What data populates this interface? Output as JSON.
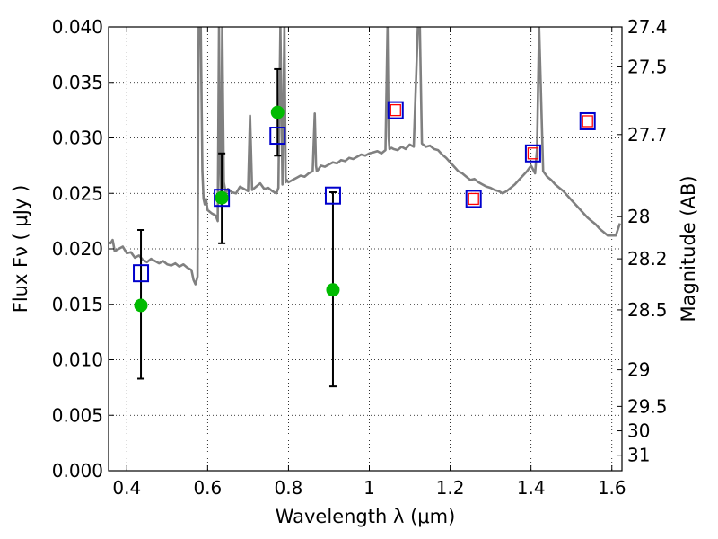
{
  "chart_data": {
    "type": "line",
    "title": "",
    "xlabel": "Wavelength  λ (μm)",
    "ylabel": "Flux  Fν  ( μJy )",
    "y2label": "Magnitude (AB)",
    "xlim": [
      0.355,
      1.625
    ],
    "ylim": [
      0.0,
      0.04
    ],
    "grid": true,
    "x_ticks": [
      0.4,
      0.6,
      0.8,
      1.0,
      1.2,
      1.4,
      1.6
    ],
    "x_tick_labels": [
      "0.4",
      "0.6",
      "0.8",
      "1",
      "1.2",
      "1.4",
      "1.6"
    ],
    "y_ticks": [
      0.0,
      0.005,
      0.01,
      0.015,
      0.02,
      0.025,
      0.03,
      0.035,
      0.04
    ],
    "y_tick_labels": [
      "0.000",
      "0.005",
      "0.010",
      "0.015",
      "0.020",
      "0.025",
      "0.030",
      "0.035",
      "0.040"
    ],
    "mag_ticks": [
      27.4,
      27.5,
      27.7,
      28,
      28.2,
      28.5,
      29,
      29.5,
      30,
      31
    ],
    "mag_tick_labels": [
      "27.4",
      "27.5",
      "27.7",
      "28",
      "28.2",
      "28.5",
      "29",
      "29.5",
      "30",
      "31"
    ],
    "mag_tick_flux": [
      0.04,
      0.0364,
      0.0303,
      0.0229,
      0.0191,
      0.0145,
      0.0091,
      0.0058,
      0.0036,
      0.0014
    ],
    "series": [
      {
        "type": "line",
        "color": "#808080",
        "x": [
          0.355,
          0.36,
          0.365,
          0.37,
          0.38,
          0.39,
          0.4,
          0.41,
          0.42,
          0.43,
          0.44,
          0.45,
          0.46,
          0.47,
          0.48,
          0.49,
          0.5,
          0.51,
          0.52,
          0.53,
          0.54,
          0.55,
          0.56,
          0.565,
          0.57,
          0.575,
          0.578,
          0.58,
          0.583,
          0.587,
          0.59,
          0.593,
          0.596,
          0.6,
          0.61,
          0.62,
          0.625,
          0.628,
          0.63,
          0.633,
          0.636,
          0.64,
          0.645,
          0.65,
          0.66,
          0.67,
          0.68,
          0.69,
          0.7,
          0.705,
          0.71,
          0.72,
          0.73,
          0.74,
          0.75,
          0.76,
          0.77,
          0.775,
          0.78,
          0.785,
          0.79,
          0.793,
          0.796,
          0.8,
          0.81,
          0.82,
          0.83,
          0.84,
          0.85,
          0.86,
          0.865,
          0.868,
          0.87,
          0.875,
          0.88,
          0.89,
          0.9,
          0.91,
          0.92,
          0.93,
          0.94,
          0.95,
          0.96,
          0.97,
          0.98,
          0.99,
          1.0,
          1.01,
          1.02,
          1.03,
          1.04,
          1.045,
          1.048,
          1.05,
          1.055,
          1.06,
          1.07,
          1.08,
          1.09,
          1.1,
          1.11,
          1.12,
          1.125,
          1.13,
          1.14,
          1.15,
          1.16,
          1.17,
          1.18,
          1.19,
          1.2,
          1.21,
          1.22,
          1.23,
          1.24,
          1.25,
          1.26,
          1.27,
          1.28,
          1.29,
          1.3,
          1.31,
          1.32,
          1.33,
          1.34,
          1.35,
          1.36,
          1.37,
          1.38,
          1.39,
          1.4,
          1.41,
          1.415,
          1.42,
          1.43,
          1.44,
          1.45,
          1.46,
          1.47,
          1.48,
          1.49,
          1.5,
          1.51,
          1.52,
          1.53,
          1.54,
          1.55,
          1.56,
          1.57,
          1.58,
          1.59,
          1.6,
          1.61,
          1.62
        ],
        "y": [
          0.0206,
          0.0205,
          0.0208,
          0.0198,
          0.02,
          0.0202,
          0.0196,
          0.0197,
          0.0192,
          0.0194,
          0.019,
          0.0188,
          0.0191,
          0.0189,
          0.0187,
          0.0189,
          0.0186,
          0.0185,
          0.0187,
          0.0184,
          0.0186,
          0.0183,
          0.0181,
          0.0172,
          0.0168,
          0.0175,
          0.04,
          0.04,
          0.04,
          0.027,
          0.0245,
          0.024,
          0.0245,
          0.0235,
          0.0232,
          0.023,
          0.0225,
          0.04,
          0.029,
          0.0245,
          0.04,
          0.026,
          0.025,
          0.0254,
          0.0251,
          0.025,
          0.0256,
          0.0254,
          0.0252,
          0.032,
          0.0253,
          0.0256,
          0.0259,
          0.0254,
          0.0255,
          0.0252,
          0.025,
          0.0255,
          0.04,
          0.0258,
          0.04,
          0.026,
          0.0262,
          0.026,
          0.0262,
          0.0264,
          0.0266,
          0.0265,
          0.0268,
          0.027,
          0.0322,
          0.0275,
          0.027,
          0.0272,
          0.0275,
          0.0274,
          0.0276,
          0.0278,
          0.0277,
          0.028,
          0.0279,
          0.0282,
          0.0281,
          0.0283,
          0.0285,
          0.0284,
          0.0286,
          0.0287,
          0.0288,
          0.0286,
          0.0289,
          0.04,
          0.03,
          0.029,
          0.0291,
          0.029,
          0.0289,
          0.0292,
          0.029,
          0.0294,
          0.0292,
          0.04,
          0.04,
          0.0295,
          0.0292,
          0.0293,
          0.029,
          0.0289,
          0.0285,
          0.0282,
          0.0278,
          0.0274,
          0.027,
          0.0268,
          0.0265,
          0.0262,
          0.0263,
          0.026,
          0.0258,
          0.0256,
          0.0255,
          0.0253,
          0.0252,
          0.025,
          0.0252,
          0.0255,
          0.0258,
          0.0262,
          0.0266,
          0.027,
          0.0275,
          0.0268,
          0.029,
          0.04,
          0.027,
          0.0265,
          0.0262,
          0.0258,
          0.0255,
          0.0252,
          0.0248,
          0.0244,
          0.024,
          0.0236,
          0.0232,
          0.0228,
          0.0225,
          0.0222,
          0.0218,
          0.0215,
          0.0212,
          0.0212,
          0.0212,
          0.0223
        ]
      },
      {
        "type": "scatter",
        "marker": "square",
        "color": "#0000cc",
        "x": [
          0.435,
          0.635,
          0.773,
          0.91,
          1.065,
          1.258,
          1.405,
          1.54
        ],
        "y": [
          0.0178,
          0.0246,
          0.0302,
          0.0248,
          0.0325,
          0.0245,
          0.0286,
          0.0315
        ]
      },
      {
        "type": "scatter",
        "marker": "open-square",
        "color": "#ff0000",
        "x": [
          1.065,
          1.258,
          1.405,
          1.54
        ],
        "y": [
          0.0325,
          0.0245,
          0.0286,
          0.0315
        ]
      },
      {
        "type": "scatter",
        "marker": "circle",
        "color": "#00bb00",
        "x": [
          0.435,
          0.635,
          0.773,
          0.91
        ],
        "y": [
          0.0149,
          0.0246,
          0.0323,
          0.0163
        ],
        "error_low": [
          0.0083,
          0.0205,
          0.0284,
          0.0076
        ],
        "error_high": [
          0.0217,
          0.0286,
          0.0362,
          0.0251
        ]
      }
    ]
  }
}
